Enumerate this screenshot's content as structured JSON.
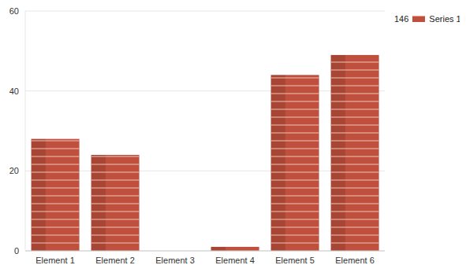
{
  "chart_data": {
    "type": "bar",
    "categories": [
      "Element 1",
      "Element 2",
      "Element 3",
      "Element 4",
      "Element 5",
      "Element 6"
    ],
    "series": [
      {
        "name": "Series 1",
        "color": "#c0503e",
        "values": [
          28,
          24,
          0,
          1,
          44,
          49
        ],
        "total": 146
      }
    ],
    "ylim": [
      0,
      60
    ],
    "yticks": [
      0,
      20,
      40,
      60
    ],
    "grid": true,
    "legend": "top-right"
  }
}
